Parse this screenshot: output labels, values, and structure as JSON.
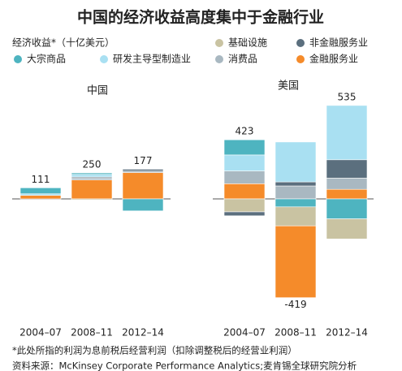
{
  "title": "中国的经济收益高度集中于金融行业",
  "y_label": "经济收益*（十亿美元）",
  "notes": [
    "*此处所指的利润为息前税后经营利润（扣除调整税后的经营业利润）",
    "资料来源：McKinsey Corporate Performance Analytics;麦肯锡全球研究院分析"
  ],
  "chart_data": [
    {
      "type": "bar",
      "subtitle": "中国",
      "categories": [
        "2004–07",
        "2008–11",
        "2012–14"
      ],
      "totals": [
        111,
        250,
        177
      ],
      "series": [
        {
          "name": "基础设施",
          "color": "#c9c3a2",
          "values": [
            0,
            -10,
            0
          ]
        },
        {
          "name": "非金融服务业",
          "color": "#5b6f7e",
          "values": [
            0,
            10,
            18
          ]
        },
        {
          "name": "大宗商品",
          "color": "#4eb4c0",
          "values": [
            60,
            15,
            -120
          ]
        },
        {
          "name": "研发主导型制造业",
          "color": "#a9e0f2",
          "values": [
            16,
            25,
            0
          ]
        },
        {
          "name": "消费品",
          "color": "#a9b8c1",
          "values": [
            0,
            20,
            15
          ]
        },
        {
          "name": "金融服务业",
          "color": "#f58b2a",
          "values": [
            35,
            190,
            264
          ]
        }
      ]
    },
    {
      "type": "bar",
      "subtitle": "美国",
      "categories": [
        "2004–07",
        "2008–11",
        "2012–14"
      ],
      "totals": [
        423,
        -419,
        535
      ],
      "series": [
        {
          "name": "基础设施",
          "color": "#c9c3a2",
          "values": [
            -130,
            -190,
            -201
          ]
        },
        {
          "name": "非金融服务业",
          "color": "#5b6f7e",
          "values": [
            -39,
            40,
            184
          ]
        },
        {
          "name": "大宗商品",
          "color": "#4eb4c0",
          "values": [
            152,
            -80,
            -200
          ]
        },
        {
          "name": "研发主导型制造业",
          "color": "#a9e0f2",
          "values": [
            160,
            400,
            544
          ]
        },
        {
          "name": "消费品",
          "color": "#a9b8c1",
          "values": [
            128,
            130,
            112
          ]
        },
        {
          "name": "金融服务业",
          "color": "#f58b2a",
          "values": [
            152,
            -719,
            96
          ]
        }
      ]
    }
  ]
}
